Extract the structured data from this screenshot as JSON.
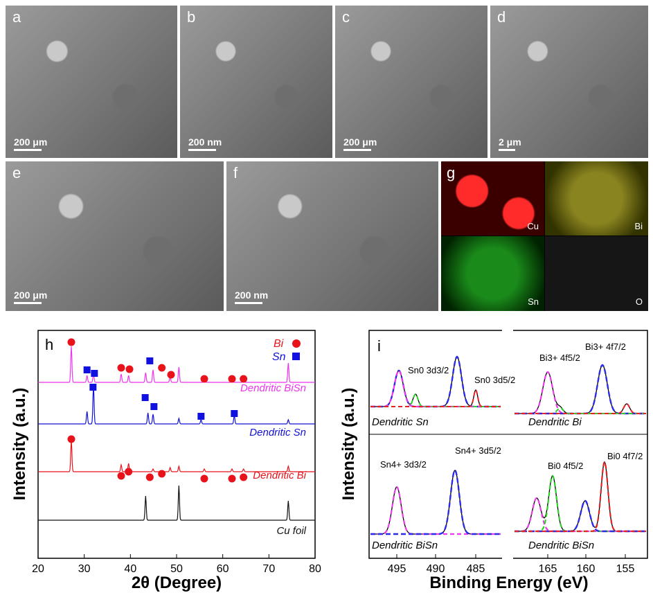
{
  "panels": {
    "a": {
      "label": "a",
      "scale": "200 μm"
    },
    "b": {
      "label": "b",
      "scale": "200 nm"
    },
    "c": {
      "label": "c",
      "scale": "200 μm"
    },
    "d": {
      "label": "d",
      "scale": "2 μm"
    },
    "e": {
      "label": "e",
      "scale": "200 μm"
    },
    "f": {
      "label": "f",
      "scale": "200 nm"
    },
    "g": {
      "label": "g",
      "maps": [
        "Cu",
        "Bi",
        "Sn",
        "O"
      ],
      "colors": [
        "#e0111a",
        "#c6c02a",
        "#1fbf1f",
        "#555555"
      ]
    }
  },
  "xrd": {
    "label": "h",
    "ylabel": "Intensity (a.u.)",
    "xlabel": "2θ (Degree)",
    "legend": [
      {
        "text": "Bi",
        "color": "#e8121a",
        "marker": "circle"
      },
      {
        "text": "Sn",
        "color": "#1010e0",
        "marker": "square"
      }
    ],
    "traces": [
      {
        "name": "Dendritic BiSn",
        "color": "#ee33ee"
      },
      {
        "name": "Dendritic Sn",
        "color": "#1010d8"
      },
      {
        "name": "Dendritic Bi",
        "color": "#e8121a"
      },
      {
        "name": "Cu foil",
        "color": "#111111"
      }
    ],
    "xticks": [
      "20",
      "30",
      "40",
      "50",
      "60",
      "70",
      "80"
    ]
  },
  "xps": {
    "label": "i",
    "ylabel": "Intensity (a.u.)",
    "xlabel": "Binding Energy (eV)",
    "xticks_left": [
      "495",
      "490",
      "485"
    ],
    "xticks_right": [
      "165",
      "160",
      "155"
    ],
    "sub": {
      "tl": "Dendritic Sn",
      "tr": "Dendritic Bi",
      "bl": "Dendritic BiSn",
      "br": "Dendritic BiSn"
    },
    "annotations": {
      "sn0_32": "Sn0 3d3/2",
      "sn0_52": "Sn0 3d5/2",
      "bi3_52": "Bi3+ 4f5/2",
      "bi3_72": "Bi3+ 4f7/2",
      "sn4_52": "Sn4+ 3d5/2",
      "sn4_32": "Sn4+ 3d3/2",
      "bi0_52": "Bi0 4f5/2",
      "bi0_72": "Bi0 4f7/2"
    }
  }
}
